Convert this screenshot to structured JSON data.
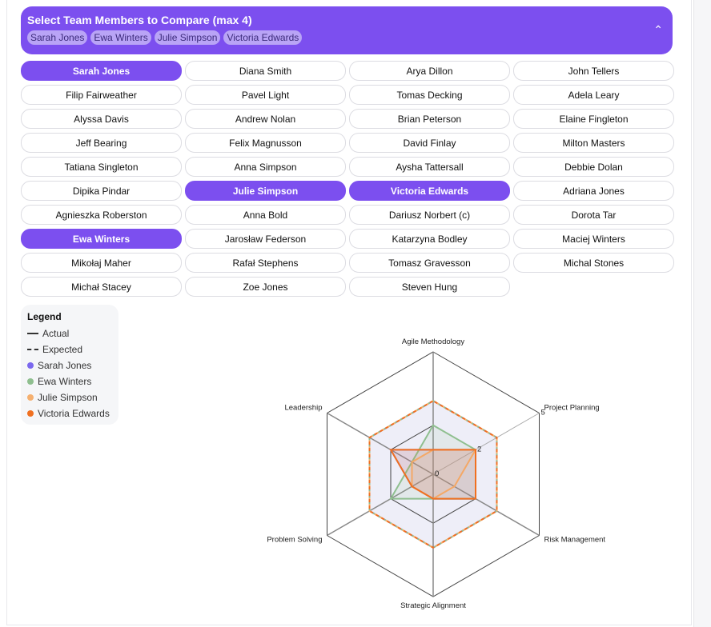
{
  "header": {
    "title": "Select Team Members to Compare (max 4)",
    "selected": [
      "Sarah Jones",
      "Ewa Winters",
      "Julie Simpson",
      "Victoria Edwards"
    ],
    "toggle_icon": "chevron-up-icon"
  },
  "members": [
    {
      "name": "Sarah Jones",
      "selected": true
    },
    {
      "name": "Diana Smith",
      "selected": false
    },
    {
      "name": "Arya Dillon",
      "selected": false
    },
    {
      "name": "John Tellers",
      "selected": false
    },
    {
      "name": "Filip Fairweather",
      "selected": false
    },
    {
      "name": "Pavel Light",
      "selected": false
    },
    {
      "name": "Tomas Decking",
      "selected": false
    },
    {
      "name": "Adela Leary",
      "selected": false
    },
    {
      "name": "Alyssa Davis",
      "selected": false
    },
    {
      "name": "Andrew Nolan",
      "selected": false
    },
    {
      "name": "Brian Peterson",
      "selected": false
    },
    {
      "name": "Elaine Fingleton",
      "selected": false
    },
    {
      "name": "Jeff Bearing",
      "selected": false
    },
    {
      "name": "Felix Magnusson",
      "selected": false
    },
    {
      "name": "David Finlay",
      "selected": false
    },
    {
      "name": "Milton Masters",
      "selected": false
    },
    {
      "name": "Tatiana Singleton",
      "selected": false
    },
    {
      "name": "Anna Simpson",
      "selected": false
    },
    {
      "name": "Aysha Tattersall",
      "selected": false
    },
    {
      "name": "Debbie Dolan",
      "selected": false
    },
    {
      "name": "Dipika Pindar",
      "selected": false
    },
    {
      "name": "Julie Simpson",
      "selected": true
    },
    {
      "name": "Victoria Edwards",
      "selected": true
    },
    {
      "name": "Adriana Jones",
      "selected": false
    },
    {
      "name": "Agnieszka Roberston",
      "selected": false
    },
    {
      "name": "Anna Bold",
      "selected": false
    },
    {
      "name": "Dariusz Norbert (c)",
      "selected": false
    },
    {
      "name": "Dorota Tar",
      "selected": false
    },
    {
      "name": "Ewa Winters",
      "selected": true
    },
    {
      "name": "Jarosław Federson",
      "selected": false
    },
    {
      "name": "Katarzyna Bodley",
      "selected": false
    },
    {
      "name": "Maciej Winters",
      "selected": false
    },
    {
      "name": "Mikołaj Maher",
      "selected": false
    },
    {
      "name": "Rafał Stephens",
      "selected": false
    },
    {
      "name": "Tomasz Gravesson",
      "selected": false
    },
    {
      "name": "Michal Stones",
      "selected": false
    },
    {
      "name": "Michał Stacey",
      "selected": false
    },
    {
      "name": "Zoe Jones",
      "selected": false
    },
    {
      "name": "Steven Hung",
      "selected": false
    }
  ],
  "legend": {
    "title": "Legend",
    "actual": "Actual",
    "expected": "Expected"
  },
  "chart_data": {
    "type": "radar",
    "axes": [
      "Agile Methodology",
      "Project Planning",
      "Risk Management",
      "Strategic Alignment",
      "Problem Solving",
      "Leadership"
    ],
    "range": [
      0,
      5
    ],
    "ticks": [
      "0",
      "2",
      "5"
    ],
    "series": [
      {
        "name": "Sarah Jones",
        "color": "#7b68ee",
        "actual": [
          1,
          2,
          2,
          1,
          1,
          2
        ],
        "expected": [
          3,
          3,
          3,
          3,
          3,
          3
        ]
      },
      {
        "name": "Ewa Winters",
        "color": "#8fbf8f",
        "actual": [
          2,
          2,
          2,
          1,
          2,
          1
        ],
        "expected": [
          3,
          3,
          3,
          3,
          3,
          3
        ]
      },
      {
        "name": "Julie Simpson",
        "color": "#f5b070",
        "actual": [
          1,
          2,
          1,
          1,
          1,
          1
        ],
        "expected": [
          3,
          3,
          3,
          3,
          3,
          3
        ]
      },
      {
        "name": "Victoria Edwards",
        "color": "#f07020",
        "actual": [
          1,
          2,
          2,
          1,
          1,
          2
        ],
        "expected": [
          3,
          3,
          3,
          3,
          3,
          3
        ]
      }
    ]
  }
}
